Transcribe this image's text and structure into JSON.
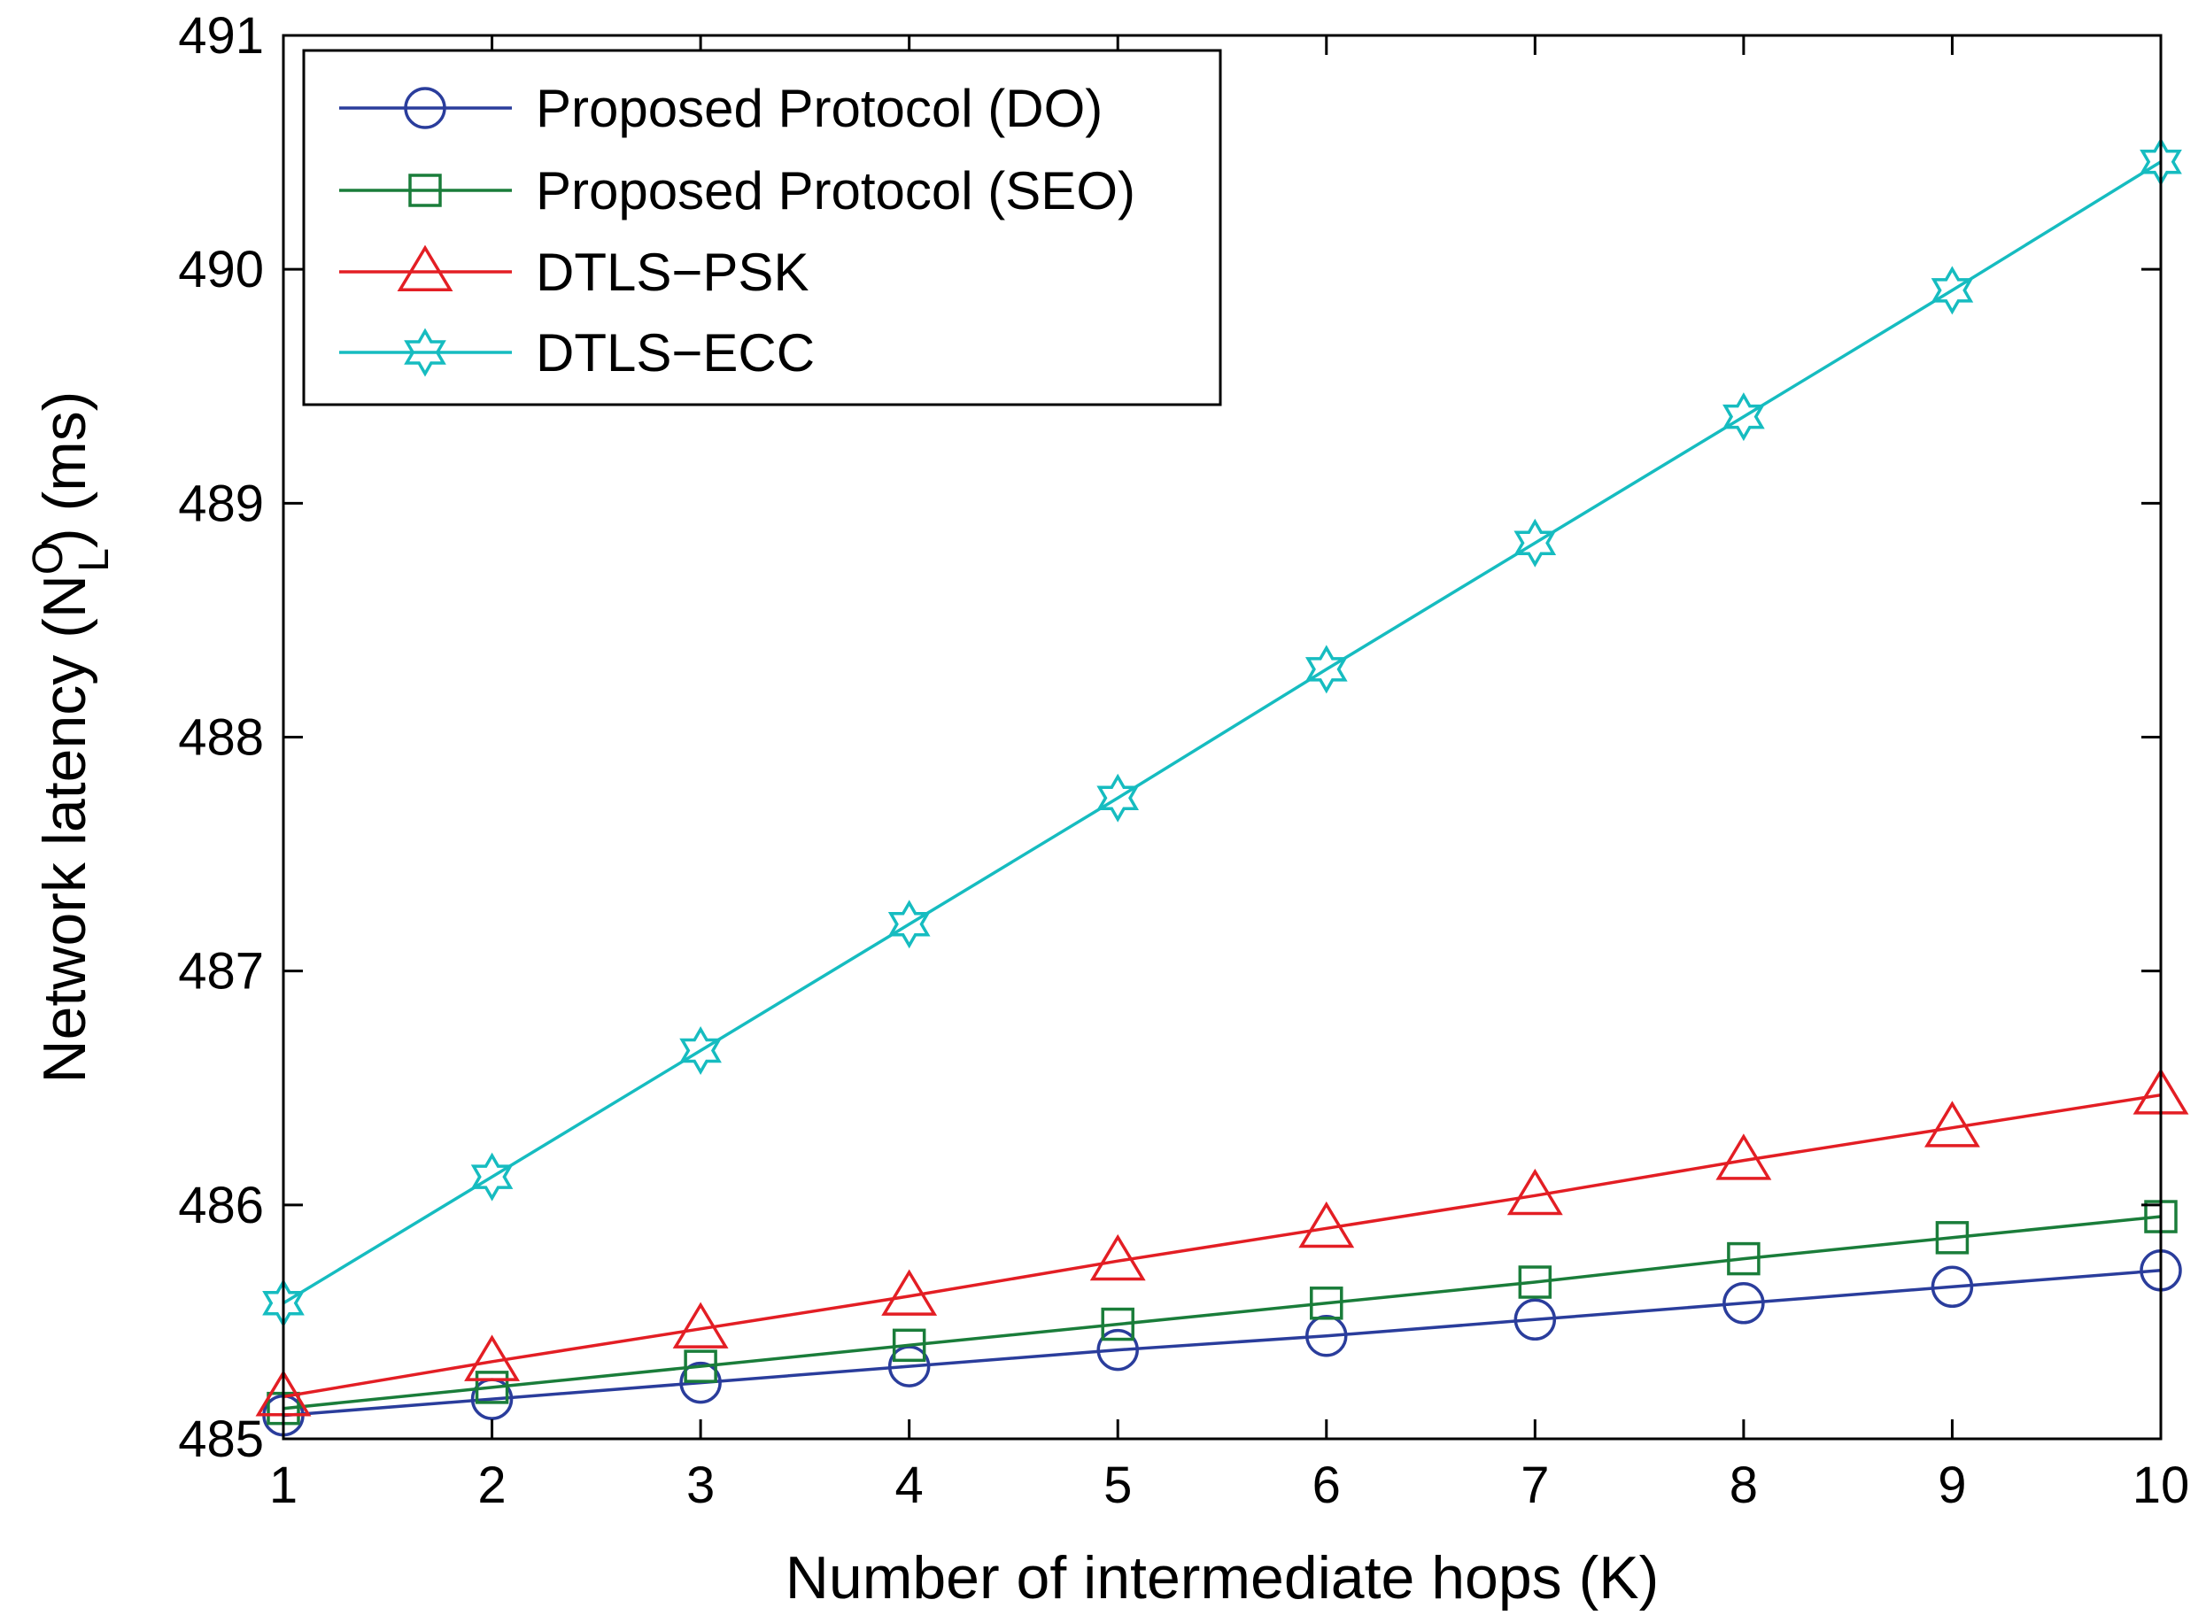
{
  "chart_data": {
    "type": "line",
    "title": "",
    "xlabel": "Number of intermediate hops (K)",
    "ylabel": "Network latency (N",
    "ylabel_sup": "O",
    "ylabel_sub": "L",
    "ylabel_suffix": ") (ms)",
    "x": [
      1,
      2,
      3,
      4,
      5,
      6,
      7,
      8,
      9,
      10
    ],
    "xlim": [
      1,
      10
    ],
    "ylim": [
      485,
      491
    ],
    "xticks": [
      "1",
      "2",
      "3",
      "4",
      "5",
      "6",
      "7",
      "8",
      "9",
      "10"
    ],
    "yticks": [
      "485",
      "486",
      "487",
      "488",
      "489",
      "490",
      "491"
    ],
    "grid": false,
    "legend_position": "top-left",
    "series": [
      {
        "name": "Proposed Protocol (DO)",
        "color": "#2a3d9c",
        "marker": "circle",
        "values": [
          485.1,
          485.17,
          485.24,
          485.31,
          485.38,
          485.44,
          485.51,
          485.58,
          485.65,
          485.72
        ]
      },
      {
        "name": "Proposed Protocol (SEO)",
        "color": "#1a7d3a",
        "marker": "square",
        "values": [
          485.13,
          485.22,
          485.31,
          485.4,
          485.49,
          485.58,
          485.67,
          485.77,
          485.86,
          485.95
        ]
      },
      {
        "name": "DTLS−PSK",
        "color": "#e31e24",
        "marker": "triangle",
        "values": [
          485.18,
          485.33,
          485.47,
          485.61,
          485.76,
          485.9,
          486.04,
          486.19,
          486.33,
          486.47
        ]
      },
      {
        "name": "DTLS−ECC",
        "color": "#16bcc0",
        "marker": "hexagram",
        "values": [
          485.58,
          486.12,
          486.66,
          487.2,
          487.74,
          488.29,
          488.83,
          489.37,
          489.91,
          490.46
        ]
      }
    ]
  }
}
